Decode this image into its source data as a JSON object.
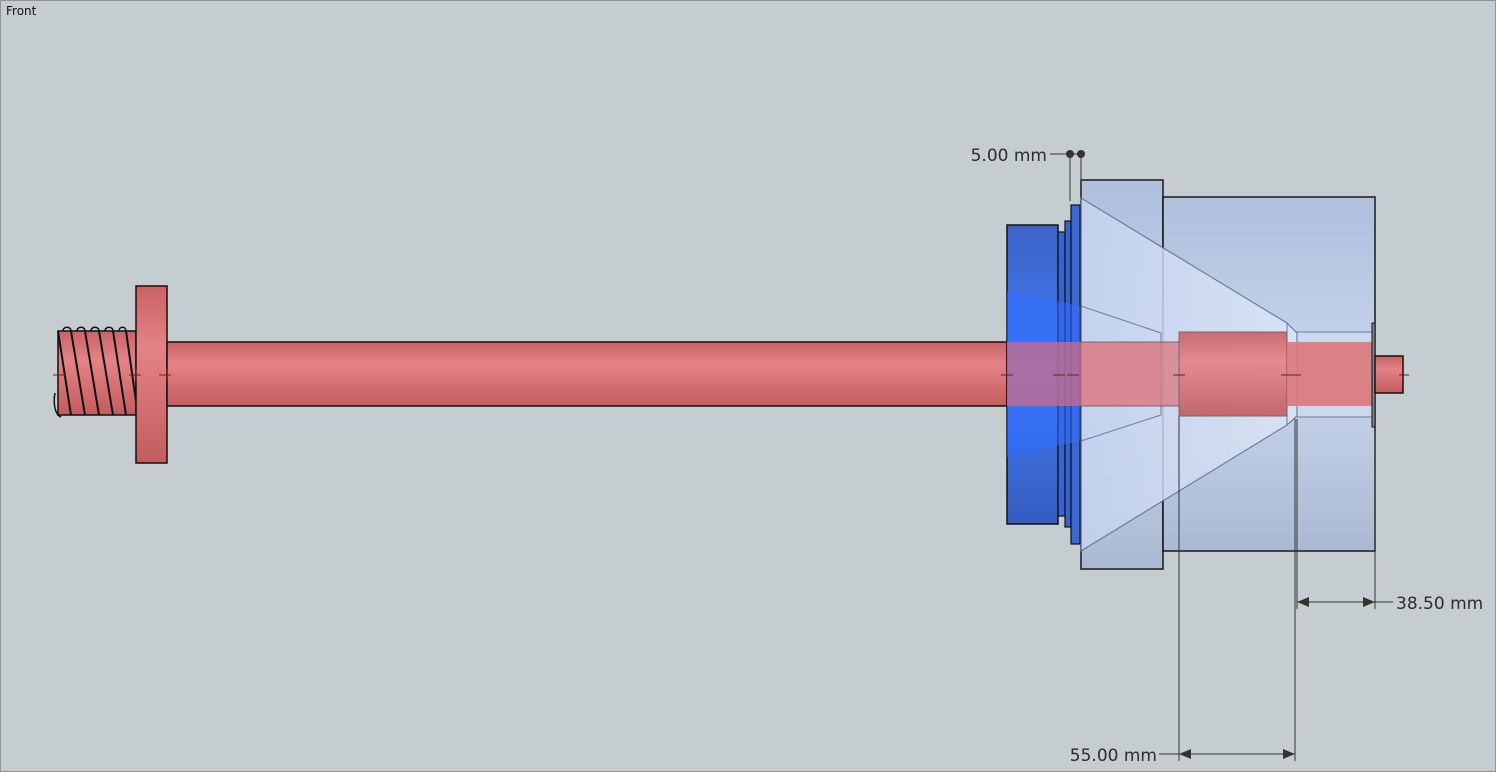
{
  "view": {
    "label": "Front"
  },
  "dimensions": {
    "top_gap": "5.00 mm",
    "right_offset": "38.50 mm",
    "bottom_length": "55.00 mm"
  },
  "colors": {
    "background": "#c6cdd0",
    "shaft": "#dd7577",
    "flange_blue": "#3f6fe0",
    "housing": "#bfd0ea",
    "outline": "#111111"
  }
}
